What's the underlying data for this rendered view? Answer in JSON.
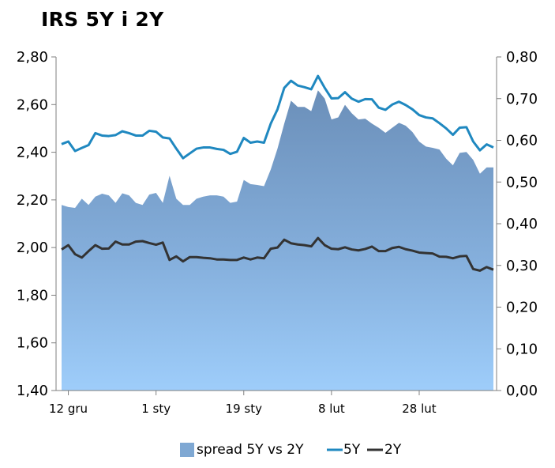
{
  "chart_data": {
    "type": "line",
    "title": "IRS 5Y i 2Y",
    "x_tick_labels": [
      "12 gru",
      "1 sty",
      "19 sty",
      "8 lut",
      "28 lut"
    ],
    "x_tick_index": [
      1,
      14,
      27,
      40,
      53
    ],
    "y_left": {
      "range": [
        1.4,
        2.8
      ],
      "ticks": [
        "1,40",
        "1,60",
        "1,80",
        "2,00",
        "2,20",
        "2,40",
        "2,60",
        "2,80"
      ]
    },
    "y_right": {
      "range": [
        0.0,
        0.8
      ],
      "ticks": [
        "0,00",
        "0,10",
        "0,20",
        "0,30",
        "0,40",
        "0,50",
        "0,60",
        "0,70",
        "0,80"
      ]
    },
    "series": [
      {
        "name": "spread 5Y vs 2Y",
        "type": "area",
        "axis": "right",
        "color": "#6f93bd",
        "values": [
          0.445,
          0.44,
          0.438,
          0.46,
          0.445,
          0.465,
          0.472,
          0.468,
          0.45,
          0.473,
          0.468,
          0.45,
          0.445,
          0.47,
          0.474,
          0.45,
          0.515,
          0.46,
          0.445,
          0.445,
          0.46,
          0.465,
          0.468,
          0.468,
          0.465,
          0.45,
          0.453,
          0.505,
          0.495,
          0.493,
          0.49,
          0.53,
          0.58,
          0.64,
          0.695,
          0.68,
          0.68,
          0.67,
          0.72,
          0.7,
          0.65,
          0.655,
          0.685,
          0.665,
          0.65,
          0.652,
          0.64,
          0.63,
          0.618,
          0.63,
          0.642,
          0.635,
          0.62,
          0.597,
          0.585,
          0.582,
          0.578,
          0.556,
          0.54,
          0.57,
          0.572,
          0.553,
          0.52,
          0.535,
          0.535
        ]
      },
      {
        "name": "5Y",
        "type": "line",
        "axis": "left",
        "color": "#1f88c0",
        "values": [
          2.434,
          2.445,
          2.405,
          2.418,
          2.43,
          2.48,
          2.47,
          2.468,
          2.472,
          2.488,
          2.48,
          2.47,
          2.47,
          2.49,
          2.486,
          2.462,
          2.458,
          2.415,
          2.375,
          2.395,
          2.415,
          2.42,
          2.42,
          2.414,
          2.41,
          2.393,
          2.402,
          2.46,
          2.44,
          2.445,
          2.44,
          2.52,
          2.58,
          2.67,
          2.7,
          2.68,
          2.673,
          2.664,
          2.72,
          2.67,
          2.626,
          2.627,
          2.652,
          2.625,
          2.612,
          2.623,
          2.622,
          2.587,
          2.578,
          2.6,
          2.612,
          2.598,
          2.58,
          2.556,
          2.546,
          2.542,
          2.522,
          2.5,
          2.473,
          2.503,
          2.505,
          2.445,
          2.408,
          2.433,
          2.42
        ]
      },
      {
        "name": "2Y",
        "type": "line",
        "axis": "left",
        "color": "#333333",
        "values": [
          1.992,
          2.01,
          1.972,
          1.958,
          1.985,
          2.01,
          1.995,
          1.996,
          2.025,
          2.013,
          2.013,
          2.025,
          2.027,
          2.019,
          2.012,
          2.021,
          1.948,
          1.963,
          1.942,
          1.96,
          1.96,
          1.957,
          1.955,
          1.95,
          1.95,
          1.948,
          1.948,
          1.958,
          1.95,
          1.958,
          1.955,
          1.995,
          2.0,
          2.033,
          2.018,
          2.013,
          2.01,
          2.005,
          2.04,
          2.01,
          1.995,
          1.993,
          2.001,
          1.992,
          1.988,
          1.994,
          2.004,
          1.985,
          1.985,
          1.998,
          2.003,
          1.993,
          1.987,
          1.979,
          1.977,
          1.975,
          1.962,
          1.961,
          1.955,
          1.963,
          1.965,
          1.91,
          1.903,
          1.918,
          1.907
        ]
      }
    ],
    "legend": {
      "placement": "bottom"
    },
    "grid": false
  }
}
